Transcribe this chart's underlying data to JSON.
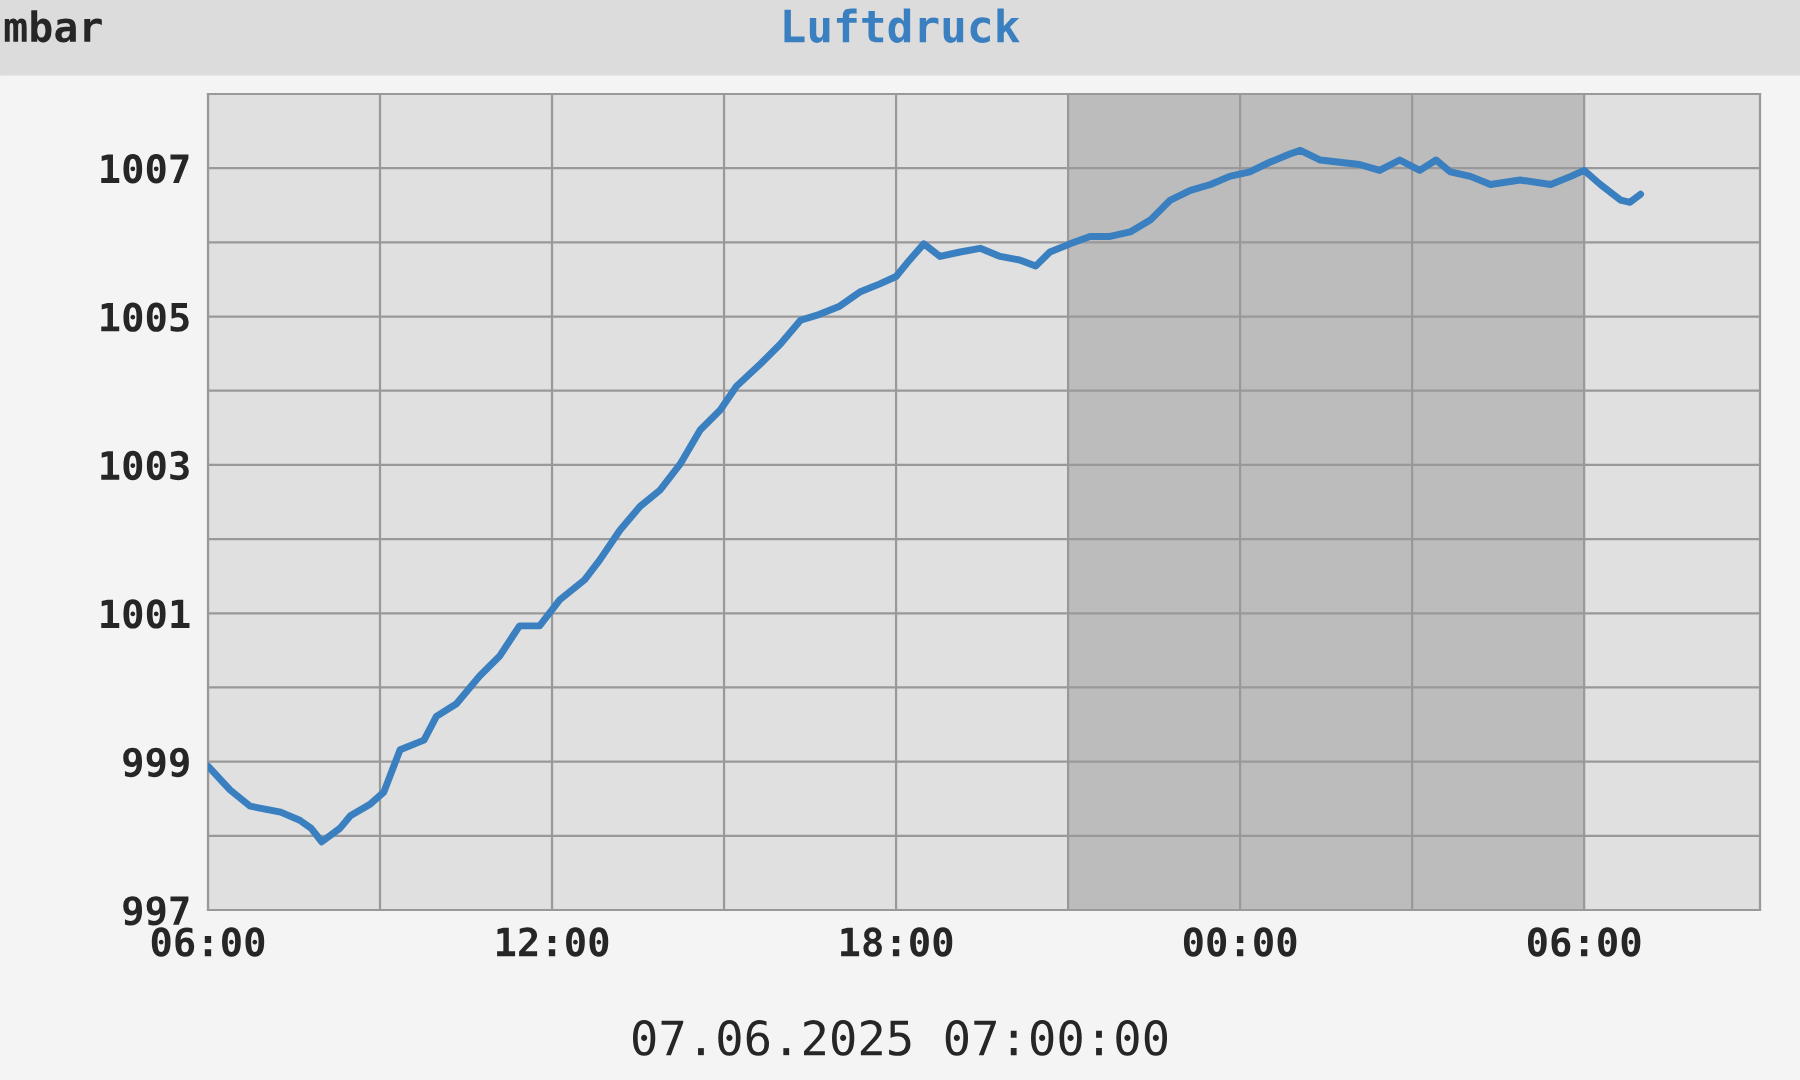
{
  "chart_data": {
    "type": "line",
    "title": "Luftdruck",
    "ylabel": "mbar",
    "annotations": [
      "07.06.2025 07:00:00"
    ],
    "xlim": [
      "2025-06-06T06:00",
      "2025-06-07T09:04"
    ],
    "ylim": [
      997,
      1008
    ],
    "xticks": [
      {
        "value": "2025-06-06T06:00",
        "label": "06:00"
      },
      {
        "value": "2025-06-06T09:00",
        "label": null
      },
      {
        "value": "2025-06-06T12:00",
        "label": "12:00"
      },
      {
        "value": "2025-06-06T15:00",
        "label": null
      },
      {
        "value": "2025-06-06T18:00",
        "label": "18:00"
      },
      {
        "value": "2025-06-06T21:00",
        "label": null
      },
      {
        "value": "2025-06-07T00:00",
        "label": "00:00"
      },
      {
        "value": "2025-06-07T03:00",
        "label": null
      },
      {
        "value": "2025-06-07T06:00",
        "label": "06:00"
      }
    ],
    "yticks": [
      997,
      {
        "value": 998,
        "label": null
      },
      999,
      {
        "value": 1000,
        "label": null
      },
      1001,
      {
        "value": 1002,
        "label": null
      },
      1003,
      {
        "value": 1004,
        "label": null
      },
      1005,
      {
        "value": 1006,
        "label": null
      },
      1007,
      {
        "value": 1008,
        "label": null
      }
    ],
    "grid": true,
    "marker": "none",
    "line_style": "solid",
    "bands": [
      {
        "axis": "x",
        "from": "2025-06-06T21:00",
        "to": "2025-06-07T06:00",
        "color": "#bcbcbc"
      }
    ],
    "series": [
      {
        "color": "#3a7fbf",
        "x": [
          "2025-06-06T06:00",
          "2025-06-06T06:23",
          "2025-06-06T06:44",
          "2025-06-06T07:16",
          "2025-06-06T07:36",
          "2025-06-06T07:48",
          "2025-06-06T07:59",
          "2025-06-06T08:18",
          "2025-06-06T08:29",
          "2025-06-06T08:50",
          "2025-06-06T09:04",
          "2025-06-06T09:21",
          "2025-06-06T09:46",
          "2025-06-06T09:59",
          "2025-06-06T10:20",
          "2025-06-06T10:44",
          "2025-06-06T11:05",
          "2025-06-06T11:26",
          "2025-06-06T11:47",
          "2025-06-06T12:08",
          "2025-06-06T12:34",
          "2025-06-06T12:50",
          "2025-06-06T13:11",
          "2025-06-06T13:32",
          "2025-06-06T13:53",
          "2025-06-06T14:14",
          "2025-06-06T14:35",
          "2025-06-06T14:56",
          "2025-06-06T15:13",
          "2025-06-06T15:38",
          "2025-06-06T15:59",
          "2025-06-06T16:20",
          "2025-06-06T16:40",
          "2025-06-06T17:01",
          "2025-06-06T17:22",
          "2025-06-06T17:43",
          "2025-06-06T18:00",
          "2025-06-06T18:14",
          "2025-06-06T18:29",
          "2025-06-06T18:46",
          "2025-06-06T19:07",
          "2025-06-06T19:28",
          "2025-06-06T19:49",
          "2025-06-06T20:10",
          "2025-06-06T20:26",
          "2025-06-06T20:41",
          "2025-06-06T21:02",
          "2025-06-06T21:23",
          "2025-06-06T21:44",
          "2025-06-06T22:05",
          "2025-06-06T22:26",
          "2025-06-06T22:47",
          "2025-06-06T23:08",
          "2025-06-06T23:29",
          "2025-06-06T23:49",
          "2025-06-07T00:10",
          "2025-06-07T00:31",
          "2025-06-07T00:52",
          "2025-06-07T01:03",
          "2025-06-07T01:24",
          "2025-06-07T01:44",
          "2025-06-07T02:05",
          "2025-06-07T02:26",
          "2025-06-07T02:47",
          "2025-06-07T03:08",
          "2025-06-07T03:25",
          "2025-06-07T03:40",
          "2025-06-07T04:01",
          "2025-06-07T04:22",
          "2025-06-07T04:53",
          "2025-06-07T05:25",
          "2025-06-07T05:46",
          "2025-06-07T06:00",
          "2025-06-07T06:17",
          "2025-06-07T06:38",
          "2025-06-07T06:48",
          "2025-06-07T06:59"
        ],
        "values": [
          998.94,
          998.62,
          998.4,
          998.32,
          998.21,
          998.1,
          997.92,
          998.1,
          998.27,
          998.43,
          998.59,
          999.16,
          999.29,
          999.61,
          999.78,
          1000.15,
          1000.42,
          1000.83,
          1000.83,
          1001.18,
          1001.45,
          1001.72,
          1002.12,
          1002.44,
          1002.66,
          1003.01,
          1003.47,
          1003.74,
          1004.06,
          1004.36,
          1004.63,
          1004.95,
          1005.03,
          1005.14,
          1005.33,
          1005.44,
          1005.54,
          1005.76,
          1005.98,
          1005.81,
          1005.87,
          1005.92,
          1005.81,
          1005.76,
          1005.68,
          1005.87,
          1005.98,
          1006.08,
          1006.08,
          1006.14,
          1006.3,
          1006.57,
          1006.7,
          1006.78,
          1006.89,
          1006.95,
          1007.08,
          1007.19,
          1007.24,
          1007.11,
          1007.08,
          1007.05,
          1006.97,
          1007.11,
          1006.97,
          1007.11,
          1006.95,
          1006.89,
          1006.78,
          1006.84,
          1006.78,
          1006.89,
          1006.97,
          1006.78,
          1006.57,
          1006.54,
          1006.65
        ]
      }
    ]
  }
}
